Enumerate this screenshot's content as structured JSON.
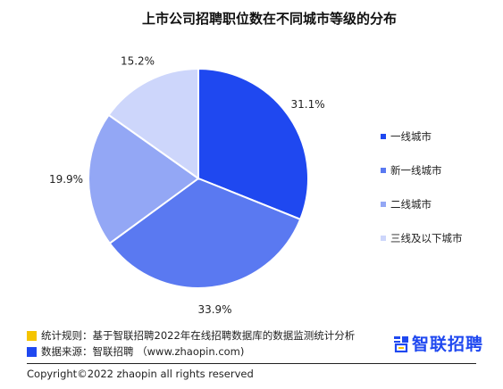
{
  "title": "上市公司招聘职位数在不同城市等级的分布",
  "chart_data": {
    "type": "pie",
    "title": "上市公司招聘职位数在不同城市等级的分布",
    "categories": [
      "一线城市",
      "新一线城市",
      "二线城市",
      "三线及以下城市"
    ],
    "values": [
      31.1,
      33.9,
      19.9,
      15.2
    ],
    "labels": [
      "31.1%",
      "33.9%",
      "19.9%",
      "15.2%"
    ],
    "colors": [
      "#1f48f0",
      "#5a79f1",
      "#93a7f5",
      "#cdd6fb"
    ],
    "legend": "right",
    "start": "12 o'clock, clockwise"
  },
  "legend": {
    "items": [
      {
        "label": "一线城市",
        "color": "#1f48f0"
      },
      {
        "label": "新一线城市",
        "color": "#5a79f1"
      },
      {
        "label": "二线城市",
        "color": "#93a7f5"
      },
      {
        "label": "三线及以下城市",
        "color": "#cdd6fb"
      }
    ]
  },
  "notes": {
    "rule": "统计规则：基于智联招聘2022年在线招聘数据库的数据监测统计分析",
    "source": "数据来源：智联招聘 （www.zhaopin.com)",
    "rule_color": "#f5c400",
    "source_color": "#1f48f0"
  },
  "logo": {
    "text": "智联招聘",
    "icon": "zhaopin-logo-icon",
    "color": "#1f48f0"
  },
  "copyright": "Copyright©2022 zhaopin all rights reserved"
}
